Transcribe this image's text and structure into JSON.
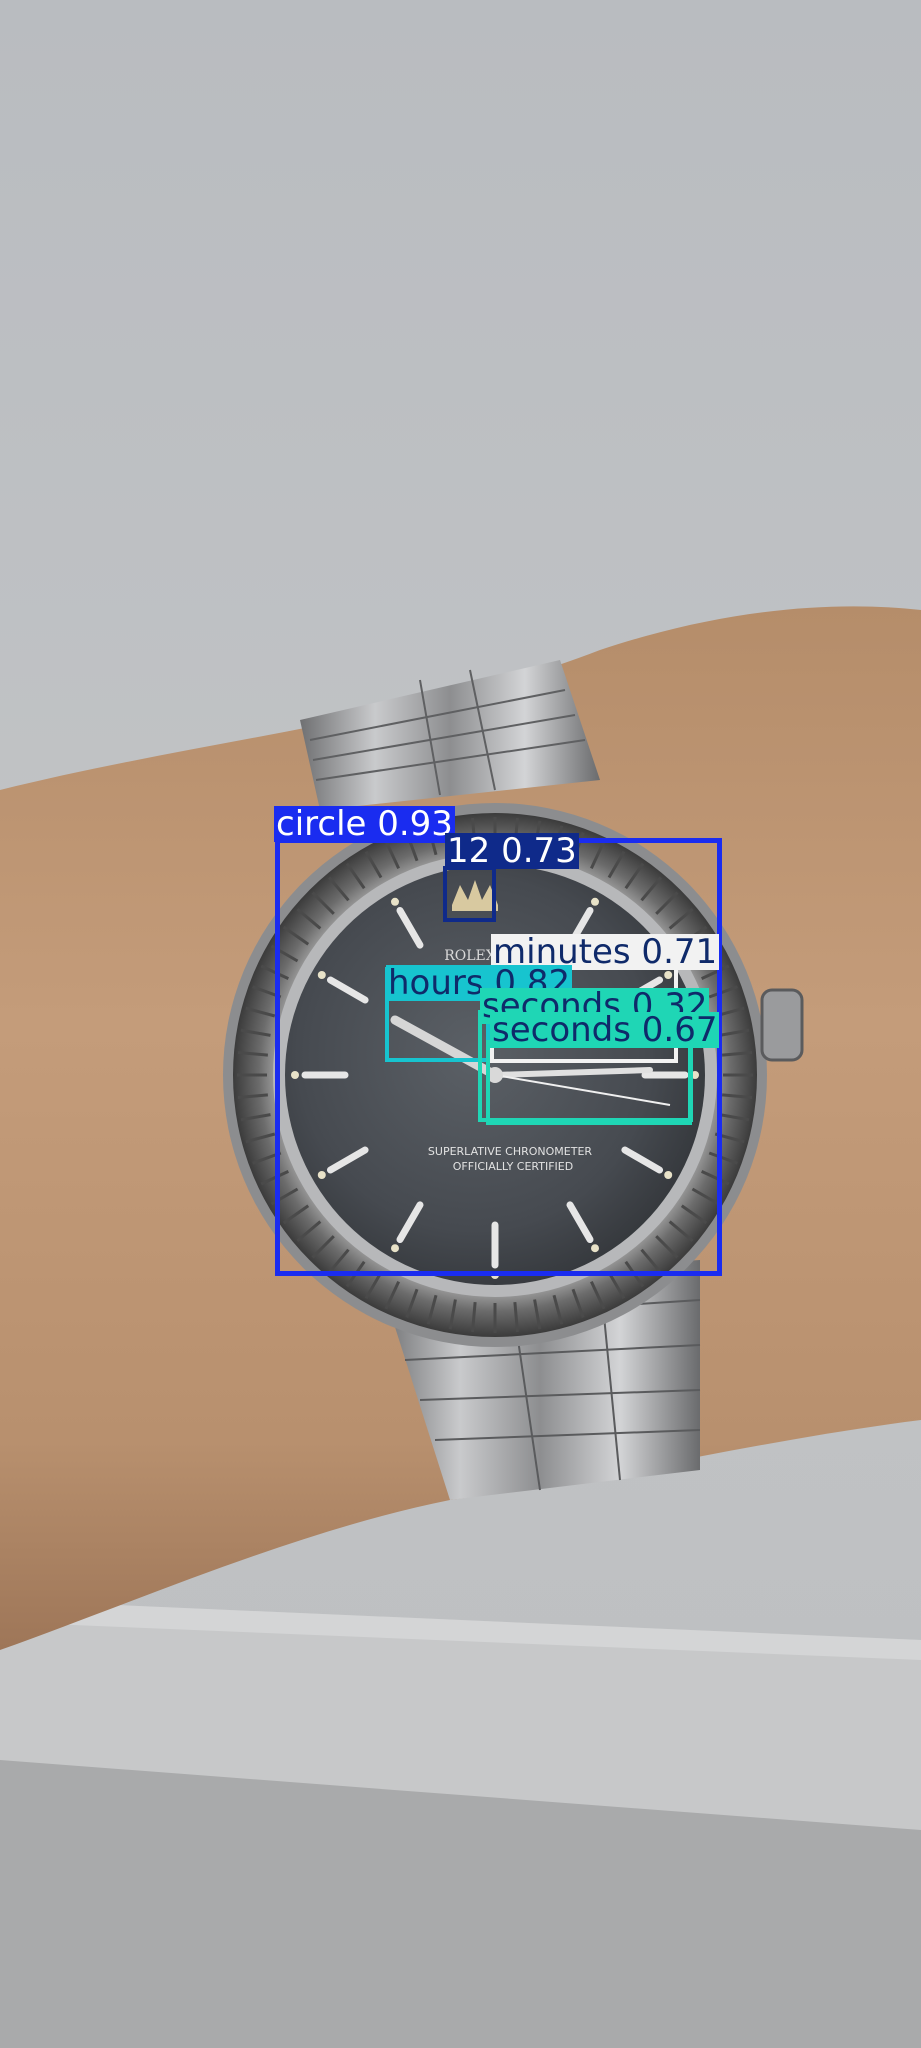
{
  "photo": {
    "subject": "wristwatch",
    "dial_text": {
      "brand": "ROLEX",
      "line1": "SUPERLATIVE CHRONOMETER",
      "line2": "OFFICIALLY CERTIFIED"
    }
  },
  "detections": [
    {
      "name": "det-circle",
      "label": "circle",
      "score": "0.93",
      "text": "circle 0.93",
      "color": "#1a2cf0",
      "text_color": "#ffffff"
    },
    {
      "name": "det-12",
      "label": "12",
      "score": "0.73",
      "text": "12 0.73",
      "color": "#0f2a8a",
      "text_color": "#ffffff"
    },
    {
      "name": "det-minutes",
      "label": "minutes",
      "score": "0.71",
      "text": "minutes 0.71",
      "color": "#f2f2f2",
      "text_color": "#0f2a6a"
    },
    {
      "name": "det-hours",
      "label": "hours",
      "score": "0.82",
      "text": "hours 0.82",
      "color": "#17c4cf",
      "text_color": "#0f2a6a"
    },
    {
      "name": "det-seconds-a",
      "label": "seconds",
      "score": "0.32",
      "text": "seconds 0.32",
      "color": "#1fd6b5",
      "text_color": "#0f2a6a"
    },
    {
      "name": "det-seconds-b",
      "label": "seconds",
      "score": "0.67",
      "text": "seconds 0.67",
      "color": "#1fd6b5",
      "text_color": "#0f2a6a"
    }
  ]
}
